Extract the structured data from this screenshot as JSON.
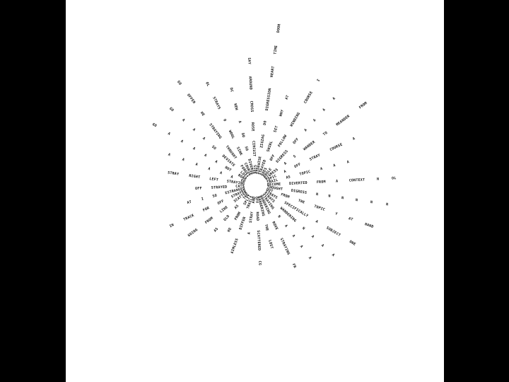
{
  "colors": {
    "border": "#000000",
    "canvas": "#ffffff",
    "text": "#111111"
  },
  "rays": [
    {
      "words": [
        "BECOME",
        "DIVERTED",
        "FROM",
        "A",
        "CONTEXT",
        "N",
        "OL"
      ]
    },
    {
      "words": [
        "THOUGHT",
        "DIGRESS",
        "N",
        "N",
        "N",
        "N",
        "N",
        "N"
      ]
    },
    {
      "words": [
        "OUT",
        "FROM",
        "THE",
        "TOPIC",
        "Y",
        "AT",
        "HAND"
      ]
    },
    {
      "words": [
        "STRAYS",
        "SPECIFICALLY",
        "A",
        "SUBJECT",
        "ONE"
      ]
    },
    {
      "words": [
        "STRAYS",
        "WANDERING",
        "N",
        "A",
        "A",
        "A"
      ]
    },
    {
      "words": [
        "STRAYING",
        "N",
        "A",
        "A",
        "A",
        "A"
      ]
    },
    {
      "words": [
        "WANDERING",
        "ROVE",
        "STRAYING",
        "FR"
      ]
    },
    {
      "words": [
        "WANDERING",
        "THE",
        "LOST"
      ]
    },
    {
      "words": [
        "OFF",
        "ROAD",
        "SCATTERED",
        "CG"
      ]
    },
    {
      "words": [
        "AND",
        "STRAY",
        "A"
      ]
    },
    {
      "words": [
        "TRAILS",
        "DIFFER",
        "AIMLESS"
      ]
    },
    {
      "words": [
        "SPLIT",
        "FROM",
        "HE"
      ]
    },
    {
      "words": [
        "THE",
        "AS",
        "OLD",
        "AS"
      ]
    },
    {
      "words": [
        "SCATTER",
        "LINE",
        "FROM",
        "GOING"
      ]
    },
    {
      "words": [
        "STRAYED",
        "OFF",
        "FOR",
        "TRACK",
        "IN"
      ]
    },
    {
      "words": [
        "ESTRANGED",
        "SO",
        "I",
        "AT"
      ]
    },
    {
      "words": [
        "CATS",
        "STRAYED",
        "OFF"
      ]
    },
    {
      "words": [
        "STRAYING",
        "LEFT",
        "RIGHT",
        "STRAY"
      ]
    },
    {
      "words": [
        "GO",
        "A",
        "A",
        "A",
        "A",
        "A",
        "A"
      ]
    },
    {
      "words": [
        "ROAM",
        "NOT",
        "A",
        "A",
        "A",
        "A",
        "A",
        "GO"
      ]
    },
    {
      "words": [
        "LOST",
        "DEVIATE",
        "SO",
        "A",
        "A",
        "A",
        "GO"
      ]
    },
    {
      "words": [
        "FORGET",
        "THOUGHT",
        "STRAYING",
        "HE",
        "OFFER",
        "GO"
      ]
    },
    {
      "words": [
        "COURSE",
        "SINK",
        "WOOL",
        "O",
        "STRAYS",
        "OL"
      ]
    },
    {
      "words": [
        "DIVERGE",
        "SO",
        "DO",
        "A",
        "NEW",
        "DC"
      ]
    },
    {
      "words": [
        "SIDE",
        "CIRCUIT",
        "ROSE",
        "CROSS",
        "AROUND",
        "SAY"
      ]
    },
    {
      "words": [
        "SIDEWISE",
        "ZIGZAG",
        "DO",
        "DIGRESSION",
        "HEART",
        "TIME",
        "DOOR"
      ]
    },
    {
      "words": [
        "STRAYED",
        "SWIRL",
        "SET",
        "WHY",
        "AT"
      ]
    },
    {
      "words": [
        "GOES",
        "OFF",
        "FOLLOW",
        "WINDING",
        "COURSE",
        "I"
      ]
    },
    {
      "words": [
        "ANGLE",
        "DIGRESS",
        "OFF",
        "A",
        "A",
        "A",
        "A"
      ]
    },
    {
      "words": [
        "DIGRESS",
        "A",
        "S",
        "WANDER",
        "TO",
        "MEANDER",
        "FROM"
      ]
    },
    {
      "words": [
        "TOPIC",
        "A",
        "OFF",
        "STRAY",
        "COURSE",
        "A"
      ]
    },
    {
      "words": [
        "TRAIL",
        "AS",
        "TOPIC",
        "A",
        "A",
        "A"
      ]
    }
  ]
}
